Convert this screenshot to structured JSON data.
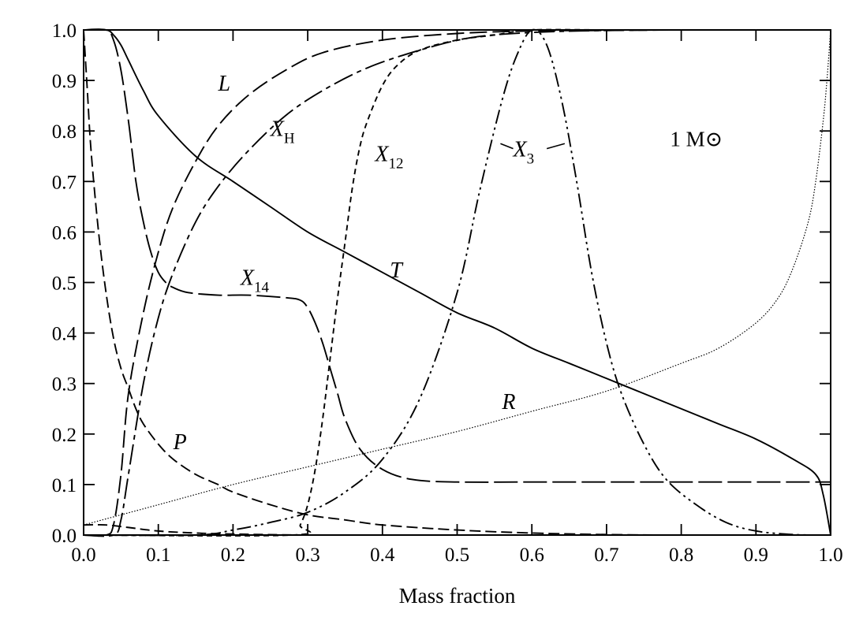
{
  "chart_data": {
    "type": "line",
    "title": "",
    "xlabel": "Mass fraction",
    "ylabel": "",
    "xlim": [
      0,
      1
    ],
    "ylim": [
      0,
      1
    ],
    "grid": false,
    "x_ticks": [
      "0.0",
      "0.1",
      "0.2",
      "0.3",
      "0.4",
      "0.5",
      "0.6",
      "0.7",
      "0.8",
      "0.9",
      "1.0"
    ],
    "y_ticks": [
      "0.0",
      "0.1",
      "0.2",
      "0.3",
      "0.4",
      "0.5",
      "0.6",
      "0.7",
      "0.8",
      "0.9",
      "1.0"
    ],
    "annotation": "1 M⊙",
    "series": [
      {
        "name": "L",
        "label_base": "L",
        "label_sub": "",
        "dash": "22 7",
        "x": [
          0.0,
          0.03,
          0.04,
          0.05,
          0.06,
          0.08,
          0.1,
          0.12,
          0.15,
          0.18,
          0.22,
          0.27,
          0.32,
          0.4,
          0.5,
          0.6,
          0.7,
          0.8,
          0.9,
          1.0
        ],
        "y": [
          0.0,
          0.0,
          0.02,
          0.12,
          0.28,
          0.44,
          0.56,
          0.65,
          0.74,
          0.81,
          0.87,
          0.92,
          0.955,
          0.98,
          0.993,
          0.998,
          0.999,
          1.0,
          1.0,
          1.0
        ]
      },
      {
        "name": "X_H",
        "label_base": "X",
        "label_sub": "H",
        "dash": "26 6 6 6",
        "x": [
          0.0,
          0.04,
          0.05,
          0.06,
          0.08,
          0.1,
          0.12,
          0.15,
          0.18,
          0.22,
          0.27,
          0.32,
          0.38,
          0.45,
          0.52,
          0.6,
          0.7,
          0.8,
          0.9,
          1.0
        ],
        "y": [
          0.0,
          0.0,
          0.03,
          0.12,
          0.3,
          0.43,
          0.52,
          0.62,
          0.69,
          0.76,
          0.83,
          0.88,
          0.925,
          0.96,
          0.985,
          0.995,
          0.999,
          1.0,
          1.0,
          1.0
        ]
      },
      {
        "name": "X_12",
        "label_base": "X",
        "label_sub": "12",
        "dash": "7 5",
        "x": [
          0.0,
          0.28,
          0.29,
          0.3,
          0.31,
          0.32,
          0.33,
          0.34,
          0.35,
          0.36,
          0.37,
          0.38,
          0.4,
          0.42,
          0.45,
          0.5,
          0.55,
          0.6,
          0.7,
          0.8,
          1.0
        ],
        "y": [
          0.0,
          0.0,
          0.02,
          0.06,
          0.13,
          0.23,
          0.35,
          0.47,
          0.58,
          0.69,
          0.77,
          0.82,
          0.89,
          0.93,
          0.96,
          0.98,
          0.99,
          1.0,
          1.0,
          1.0,
          1.0
        ]
      },
      {
        "name": "X_3",
        "label_base": "X",
        "label_sub": "3",
        "dash": "18 5 3 5 3 5",
        "x": [
          0.0,
          0.15,
          0.2,
          0.25,
          0.3,
          0.35,
          0.4,
          0.45,
          0.5,
          0.53,
          0.56,
          0.58,
          0.6,
          0.62,
          0.64,
          0.66,
          0.68,
          0.7,
          0.72,
          0.75,
          0.78,
          0.82,
          0.86,
          0.9,
          0.95,
          1.0
        ],
        "y": [
          0.0,
          0.0,
          0.01,
          0.025,
          0.045,
          0.085,
          0.15,
          0.27,
          0.48,
          0.68,
          0.86,
          0.95,
          1.0,
          0.97,
          0.86,
          0.7,
          0.52,
          0.38,
          0.28,
          0.18,
          0.11,
          0.06,
          0.025,
          0.008,
          0.001,
          0.0
        ]
      },
      {
        "name": "X_14",
        "label_base": "X",
        "label_sub": "14",
        "dash": "30 7",
        "x": [
          0.0,
          0.03,
          0.04,
          0.05,
          0.06,
          0.07,
          0.08,
          0.09,
          0.1,
          0.11,
          0.12,
          0.14,
          0.18,
          0.22,
          0.27,
          0.29,
          0.3,
          0.31,
          0.32,
          0.33,
          0.34,
          0.35,
          0.37,
          0.4,
          0.44,
          0.5,
          0.6,
          0.8,
          1.0
        ],
        "y": [
          1.0,
          1.0,
          0.98,
          0.92,
          0.82,
          0.7,
          0.62,
          0.56,
          0.52,
          0.5,
          0.49,
          0.48,
          0.475,
          0.475,
          0.47,
          0.465,
          0.45,
          0.42,
          0.38,
          0.33,
          0.28,
          0.23,
          0.17,
          0.13,
          0.11,
          0.105,
          0.105,
          0.105,
          0.105
        ]
      },
      {
        "name": "T",
        "label_base": "T",
        "label_sub": "",
        "dash": "",
        "x": [
          0.0,
          0.03,
          0.04,
          0.05,
          0.06,
          0.08,
          0.1,
          0.15,
          0.2,
          0.25,
          0.3,
          0.35,
          0.4,
          0.45,
          0.5,
          0.55,
          0.6,
          0.65,
          0.7,
          0.75,
          0.8,
          0.85,
          0.9,
          0.95,
          0.98,
          0.99,
          1.0
        ],
        "y": [
          1.0,
          1.0,
          0.99,
          0.97,
          0.94,
          0.88,
          0.83,
          0.75,
          0.7,
          0.65,
          0.6,
          0.56,
          0.52,
          0.48,
          0.44,
          0.41,
          0.37,
          0.34,
          0.31,
          0.28,
          0.25,
          0.22,
          0.19,
          0.15,
          0.12,
          0.08,
          0.0
        ]
      },
      {
        "name": "P",
        "label_base": "P",
        "label_sub": "",
        "dash": "14 6",
        "x": [
          0.0,
          0.005,
          0.01,
          0.02,
          0.03,
          0.04,
          0.05,
          0.06,
          0.07,
          0.08,
          0.1,
          0.12,
          0.15,
          0.18,
          0.2,
          0.25,
          0.3,
          0.35,
          0.4,
          0.5,
          0.6,
          0.7,
          0.8,
          1.0
        ],
        "y": [
          1.0,
          0.88,
          0.76,
          0.6,
          0.48,
          0.39,
          0.33,
          0.29,
          0.25,
          0.22,
          0.18,
          0.15,
          0.12,
          0.1,
          0.085,
          0.06,
          0.04,
          0.03,
          0.02,
          0.01,
          0.004,
          0.001,
          0.0,
          0.0
        ]
      },
      {
        "name": "R",
        "label_base": "R",
        "label_sub": "",
        "dash": "1.5 2",
        "x": [
          0.0,
          0.1,
          0.2,
          0.3,
          0.4,
          0.5,
          0.6,
          0.7,
          0.8,
          0.85,
          0.9,
          0.93,
          0.95,
          0.97,
          0.98,
          0.99,
          0.995,
          1.0
        ],
        "y": [
          0.02,
          0.06,
          0.1,
          0.135,
          0.17,
          0.205,
          0.245,
          0.285,
          0.34,
          0.37,
          0.42,
          0.47,
          0.53,
          0.62,
          0.7,
          0.82,
          0.9,
          1.0
        ]
      },
      {
        "name": "",
        "label_base": "",
        "label_sub": "",
        "dash": "12 6",
        "x": [
          0.0,
          0.03,
          0.06,
          0.1,
          0.15,
          0.2,
          0.3,
          0.4
        ],
        "y": [
          0.02,
          0.02,
          0.015,
          0.008,
          0.004,
          0.002,
          0.0,
          0.0
        ]
      }
    ]
  }
}
